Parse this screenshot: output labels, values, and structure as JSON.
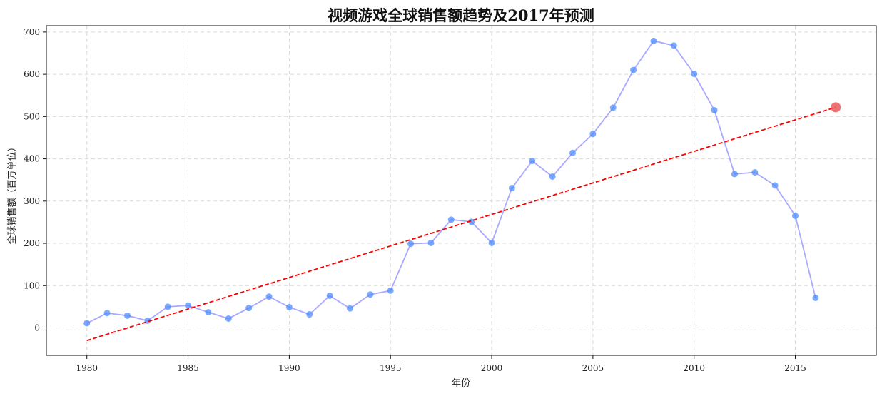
{
  "chart_data": {
    "type": "line",
    "title": "视频游戏全球销售额趋势及2017年预测",
    "xlabel": "年份",
    "ylabel": "全球销售额（百万单位）",
    "xlim": [
      1978,
      2019
    ],
    "ylim": [
      -65,
      715
    ],
    "x_ticks": [
      1980,
      1985,
      1990,
      1995,
      2000,
      2005,
      2010,
      2015
    ],
    "y_ticks": [
      0,
      100,
      200,
      300,
      400,
      500,
      600,
      700
    ],
    "grid": true,
    "legend": "none",
    "series": [
      {
        "color": "#8c8cff",
        "marker_color": "#4d8cff",
        "x": [
          1980,
          1981,
          1982,
          1983,
          1984,
          1985,
          1986,
          1987,
          1988,
          1989,
          1990,
          1991,
          1992,
          1993,
          1994,
          1995,
          1996,
          1997,
          1998,
          1999,
          2000,
          2001,
          2002,
          2003,
          2004,
          2005,
          2006,
          2007,
          2008,
          2009,
          2010,
          2011,
          2012,
          2013,
          2014,
          2015,
          2016
        ],
        "y": [
          11,
          35,
          29,
          17,
          50,
          53,
          37,
          22,
          47,
          74,
          49,
          32,
          76,
          46,
          79,
          88,
          199,
          201,
          256,
          251,
          201,
          331,
          395,
          358,
          414,
          459,
          521,
          610,
          679,
          668,
          601,
          515,
          364,
          368,
          337,
          265,
          71
        ]
      },
      {
        "type": "trend",
        "style": "dashed",
        "color": "#ff0000",
        "x": [
          1980,
          2017
        ],
        "y": [
          -30,
          522
        ]
      },
      {
        "type": "prediction",
        "color": "#e85a5a",
        "x": [
          2017
        ],
        "y": [
          522
        ]
      }
    ]
  }
}
